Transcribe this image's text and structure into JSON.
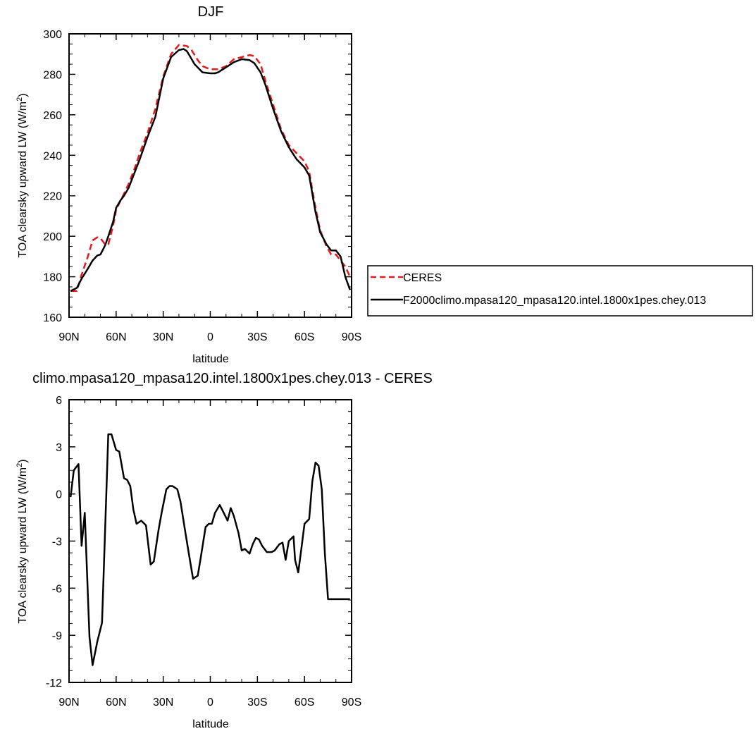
{
  "chart_data": [
    {
      "type": "line",
      "title": "DJF",
      "xlabel": "latitude",
      "ylabel": "TOA clearsky upward LW (W/m",
      "ylabel_sup": "2",
      "ylabel_close": ")",
      "xlim": [
        90,
        -90
      ],
      "ylim": [
        160,
        300
      ],
      "xticks": [
        90,
        60,
        30,
        0,
        -30,
        -60,
        -90
      ],
      "xtick_labels": [
        "90N",
        "60N",
        "30N",
        "0",
        "30S",
        "60S",
        "90S"
      ],
      "yticks": [
        160,
        180,
        200,
        220,
        240,
        260,
        280,
        300
      ],
      "ytick_labels": [
        "160",
        "180",
        "200",
        "220",
        "240",
        "260",
        "280",
        "300"
      ],
      "legend_position": "right",
      "series": [
        {
          "name": "CERES",
          "color": "#e31a1c",
          "dash": "dashed",
          "x": [
            89,
            85,
            82,
            78,
            75,
            72,
            70,
            67,
            65,
            62,
            60,
            57,
            55,
            52,
            48,
            45,
            40,
            35,
            30,
            25,
            20,
            15,
            12,
            8,
            5,
            0,
            -5,
            -10,
            -15,
            -20,
            -25,
            -28,
            -32,
            -35,
            -40,
            -45,
            -50,
            -55,
            -60,
            -63,
            -67,
            -70,
            -74,
            -77,
            -80,
            -83,
            -86,
            -89
          ],
          "y": [
            173,
            173,
            181,
            190,
            198,
            199.5,
            199,
            196,
            196,
            205,
            213,
            218,
            221,
            226,
            234,
            241,
            251,
            263,
            279,
            290,
            294.5,
            294,
            292,
            287,
            284,
            282.5,
            282.5,
            284,
            287.5,
            288.5,
            289.5,
            289,
            285,
            277,
            265,
            253,
            245,
            241,
            237,
            232,
            214,
            203,
            195,
            191,
            191,
            188,
            185,
            180
          ]
        },
        {
          "name": "F2000climo.mpasa120_mpasa120.intel.1800x1pes.chey.013",
          "color": "#000000",
          "dash": "solid",
          "x": [
            89,
            85,
            82,
            78,
            75,
            72,
            70,
            67,
            65,
            62,
            60,
            57,
            55,
            52,
            48,
            45,
            40,
            35,
            30,
            25,
            20,
            17,
            15,
            13,
            10,
            5,
            0,
            -3,
            -5,
            -10,
            -15,
            -20,
            -25,
            -28,
            -32,
            -35,
            -40,
            -45,
            -50,
            -55,
            -60,
            -63,
            -67,
            -70,
            -74,
            -77,
            -80,
            -83,
            -86,
            -89
          ],
          "y": [
            173,
            174.5,
            179,
            184,
            188,
            190.5,
            191,
            195.5,
            200,
            207,
            214,
            218,
            220,
            224,
            232,
            238,
            249,
            259,
            278,
            288.5,
            292,
            292.5,
            291.5,
            289,
            285,
            281,
            280.5,
            280.5,
            281,
            283.5,
            286,
            287.5,
            287,
            285.5,
            281,
            275,
            263,
            252,
            244,
            238,
            234,
            230,
            212,
            202,
            196,
            193,
            193,
            190,
            180,
            173.5
          ]
        }
      ]
    },
    {
      "type": "line",
      "title": "climo.mpasa120_mpasa120.intel.1800x1pes.chey.013 - CERES",
      "xlabel": "latitude",
      "ylabel": "TOA clearsky upward LW (W/m",
      "ylabel_sup": "2",
      "ylabel_close": ")",
      "xlim": [
        90,
        -90
      ],
      "ylim": [
        -12,
        6
      ],
      "xticks": [
        90,
        60,
        30,
        0,
        -30,
        -60,
        -90
      ],
      "xtick_labels": [
        "90N",
        "60N",
        "30N",
        "0",
        "30S",
        "60S",
        "90S"
      ],
      "yticks": [
        -12,
        -9,
        -6,
        -3,
        0,
        3,
        6
      ],
      "ytick_labels": [
        "-12",
        "-9",
        "-6",
        "-3",
        "0",
        "3",
        "6"
      ],
      "series": [
        {
          "color": "#000000",
          "dash": "solid",
          "x": [
            89,
            87,
            84,
            82,
            80,
            77,
            75,
            72,
            69,
            65,
            63,
            60,
            58,
            55,
            53,
            51,
            49,
            47,
            44,
            41,
            38,
            36,
            33,
            31,
            28,
            26,
            24,
            21,
            19,
            16,
            14,
            11,
            8,
            6,
            3,
            1,
            -1,
            -3,
            -6,
            -9,
            -11,
            -13,
            -15,
            -18,
            -20,
            -22,
            -25,
            -27,
            -29,
            -31,
            -33,
            -36,
            -39,
            -41,
            -44,
            -46,
            -48,
            -50,
            -53,
            -54,
            -56,
            -58,
            -60,
            -63,
            -65,
            -67,
            -69,
            -71,
            -73,
            -75,
            -78,
            -81,
            -83,
            -85,
            -88,
            -89
          ],
          "y": [
            -0.2,
            1.5,
            1.9,
            -3.3,
            -1.2,
            -9.1,
            -10.9,
            -9.4,
            -8.2,
            3.8,
            3.8,
            2.8,
            2.7,
            1.0,
            0.9,
            0.5,
            -1.0,
            -1.9,
            -1.7,
            -2.0,
            -4.5,
            -4.3,
            -2.3,
            -1.2,
            0.3,
            0.5,
            0.5,
            0.3,
            -0.5,
            -2.4,
            -3.6,
            -5.4,
            -5.2,
            -4.0,
            -2.1,
            -1.9,
            -1.9,
            -1.2,
            -0.7,
            -1.3,
            -1.7,
            -0.9,
            -1.4,
            -2.5,
            -3.6,
            -3.5,
            -3.8,
            -3.2,
            -2.8,
            -2.9,
            -3.3,
            -3.7,
            -3.7,
            -3.6,
            -3.2,
            -3.1,
            -4.2,
            -3.0,
            -2.7,
            -4.2,
            -5.0,
            -3.5,
            -1.9,
            -1.6,
            0.8,
            2.0,
            1.8,
            0.3,
            -3.8,
            -6.7,
            -6.7,
            -6.7,
            -6.7,
            -6.7,
            -6.7,
            -6.7
          ]
        }
      ]
    }
  ]
}
